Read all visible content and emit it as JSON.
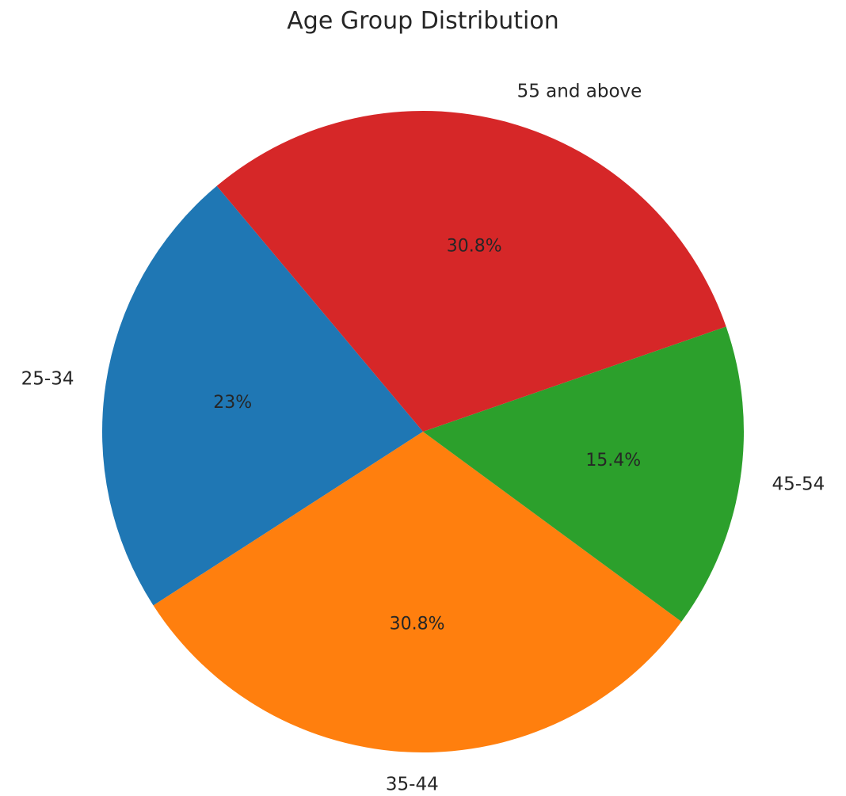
{
  "chart_data": {
    "type": "pie",
    "title": "Age Group Distribution",
    "slices": [
      {
        "label": "25-34",
        "value": 23.0,
        "pct_label": "23%",
        "color": "#1f77b4"
      },
      {
        "label": "35-44",
        "value": 30.8,
        "pct_label": "30.8%",
        "color": "#ff7f0e"
      },
      {
        "label": "45-54",
        "value": 15.4,
        "pct_label": "15.4%",
        "color": "#2ca02c"
      },
      {
        "label": "55 and above",
        "value": 30.8,
        "pct_label": "30.8%",
        "color": "#d62728"
      }
    ],
    "legend": "none"
  }
}
